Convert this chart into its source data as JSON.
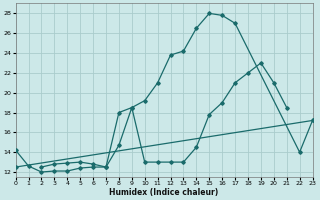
{
  "xlabel": "Humidex (Indice chaleur)",
  "xlim": [
    0,
    23
  ],
  "ylim": [
    11.5,
    29
  ],
  "yticks": [
    12,
    14,
    16,
    18,
    20,
    22,
    24,
    26,
    28
  ],
  "xticks": [
    0,
    1,
    2,
    3,
    4,
    5,
    6,
    7,
    8,
    9,
    10,
    11,
    12,
    13,
    14,
    15,
    16,
    17,
    18,
    19,
    20,
    21,
    22,
    23
  ],
  "background_color": "#cce8e8",
  "grid_color": "#aacccc",
  "line_color": "#1a6b6b",
  "line1_x": [
    0,
    1,
    2,
    3,
    4,
    5,
    6,
    7,
    8,
    9,
    10,
    11,
    12,
    13,
    14,
    15,
    16,
    17,
    22,
    23
  ],
  "line1_y": [
    14.2,
    12.6,
    12.0,
    12.1,
    12.1,
    12.4,
    12.5,
    12.5,
    14.7,
    18.5,
    19.2,
    21.0,
    23.8,
    24.2,
    26.5,
    28.0,
    27.8,
    27.0,
    14.0,
    17.2
  ],
  "line2_x": [
    2,
    3,
    4,
    5,
    6,
    7,
    8,
    9,
    10,
    11,
    12,
    13,
    14,
    15,
    16,
    17,
    18,
    19,
    20,
    21
  ],
  "line2_y": [
    12.5,
    12.8,
    12.9,
    13.0,
    12.8,
    12.5,
    18.0,
    18.5,
    13.0,
    13.0,
    13.0,
    13.0,
    14.5,
    17.8,
    19.0,
    21.0,
    22.0,
    23.0,
    21.0,
    18.5
  ],
  "line3_x": [
    0,
    23
  ],
  "line3_y": [
    12.5,
    17.2
  ]
}
